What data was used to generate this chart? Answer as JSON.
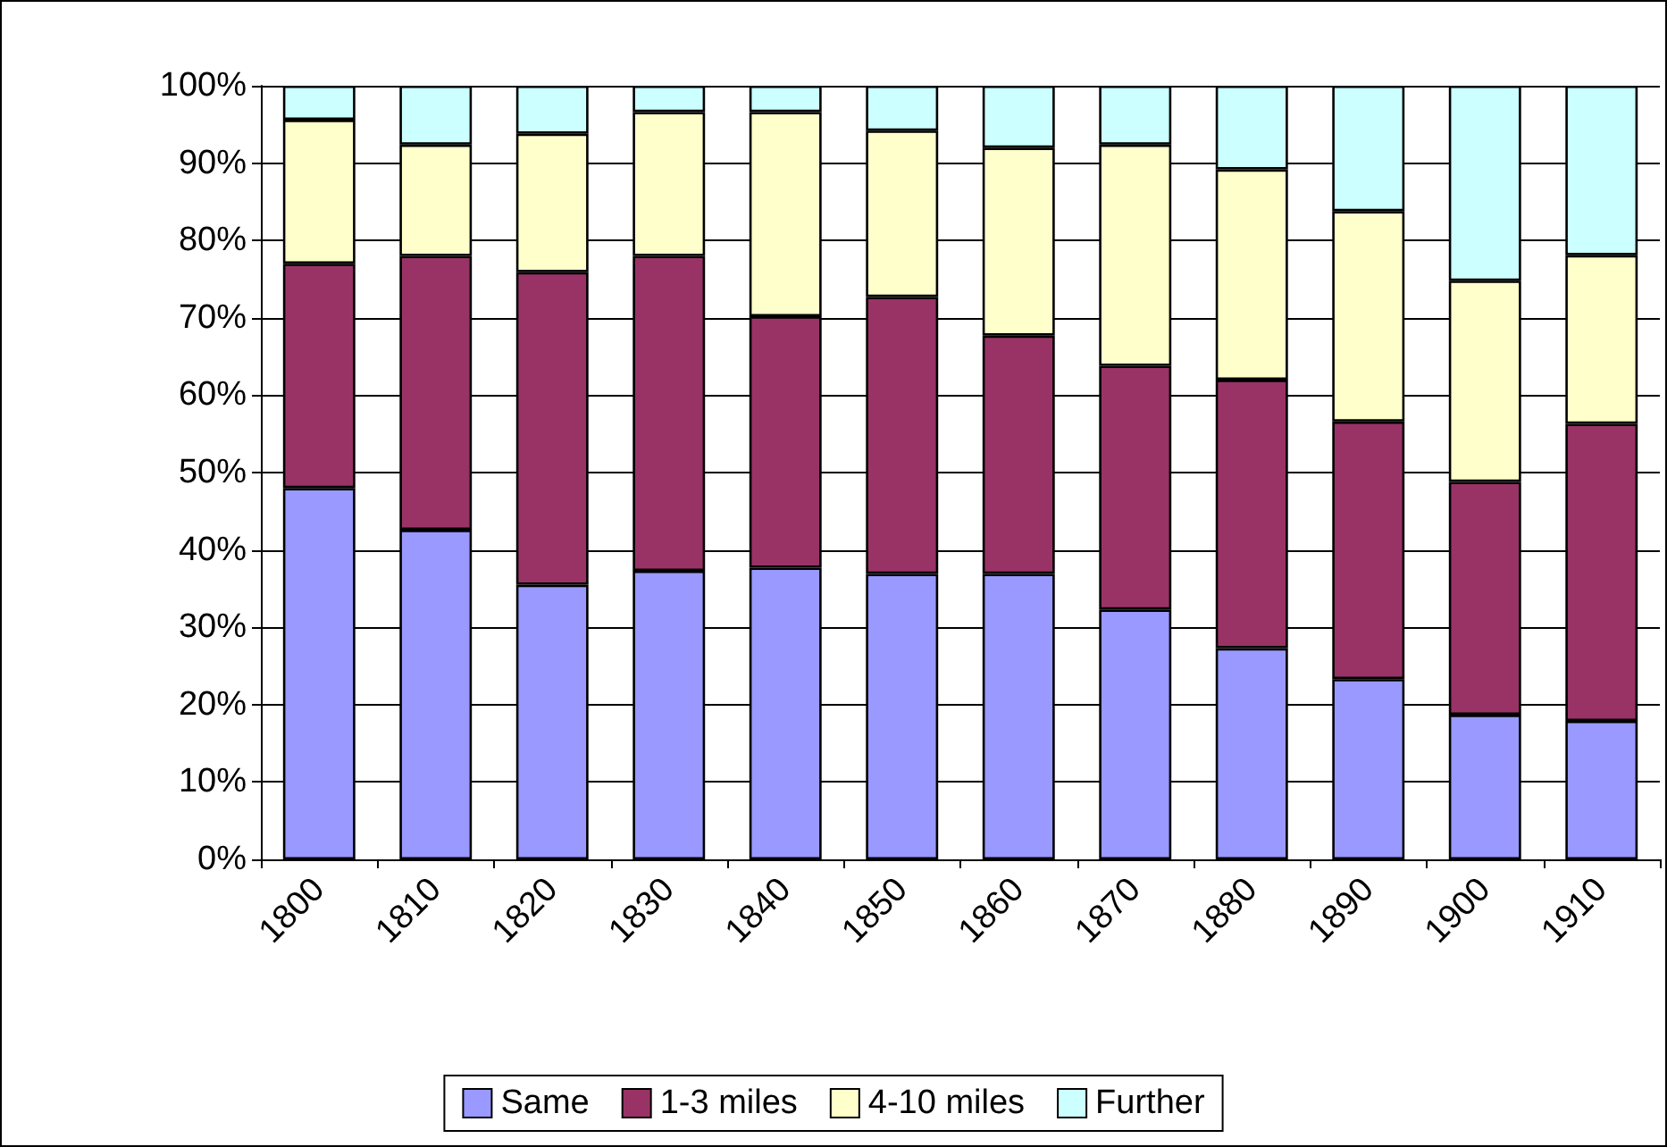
{
  "chart_data": {
    "type": "bar",
    "stacked": true,
    "categories": [
      "1800",
      "1810",
      "1820",
      "1830",
      "1840",
      "1850",
      "1860",
      "1870",
      "1880",
      "1890",
      "1900",
      "1910"
    ],
    "series": [
      {
        "name": "Same",
        "color": "#9999ff",
        "values": [
          48.0,
          42.6,
          35.5,
          37.3,
          37.7,
          36.9,
          36.9,
          32.3,
          27.3,
          23.3,
          18.7,
          17.9
        ]
      },
      {
        "name": "1-3 miles",
        "color": "#993366",
        "values": [
          29.0,
          35.4,
          40.4,
          40.7,
          32.5,
          35.8,
          30.8,
          31.5,
          34.7,
          33.3,
          30.1,
          38.4
        ]
      },
      {
        "name": "4-10 miles",
        "color": "#ffffcc",
        "values": [
          18.6,
          14.4,
          17.9,
          18.6,
          26.4,
          21.5,
          24.3,
          28.6,
          27.2,
          27.2,
          26.0,
          21.8
        ]
      },
      {
        "name": "Further",
        "color": "#ccffff",
        "values": [
          4.4,
          7.6,
          6.2,
          3.4,
          3.4,
          5.8,
          8.0,
          7.6,
          10.8,
          16.2,
          25.2,
          21.9
        ]
      }
    ],
    "ylim": [
      0,
      100
    ],
    "yticks": [
      {
        "value": 0,
        "label": "0%"
      },
      {
        "value": 10,
        "label": "10%"
      },
      {
        "value": 20,
        "label": "20%"
      },
      {
        "value": 30,
        "label": "30%"
      },
      {
        "value": 40,
        "label": "40%"
      },
      {
        "value": 50,
        "label": "50%"
      },
      {
        "value": 60,
        "label": "60%"
      },
      {
        "value": 70,
        "label": "70%"
      },
      {
        "value": 80,
        "label": "80%"
      },
      {
        "value": 90,
        "label": "90%"
      },
      {
        "value": 100,
        "label": "100%"
      }
    ],
    "grid": "y",
    "legend": "bottom"
  }
}
